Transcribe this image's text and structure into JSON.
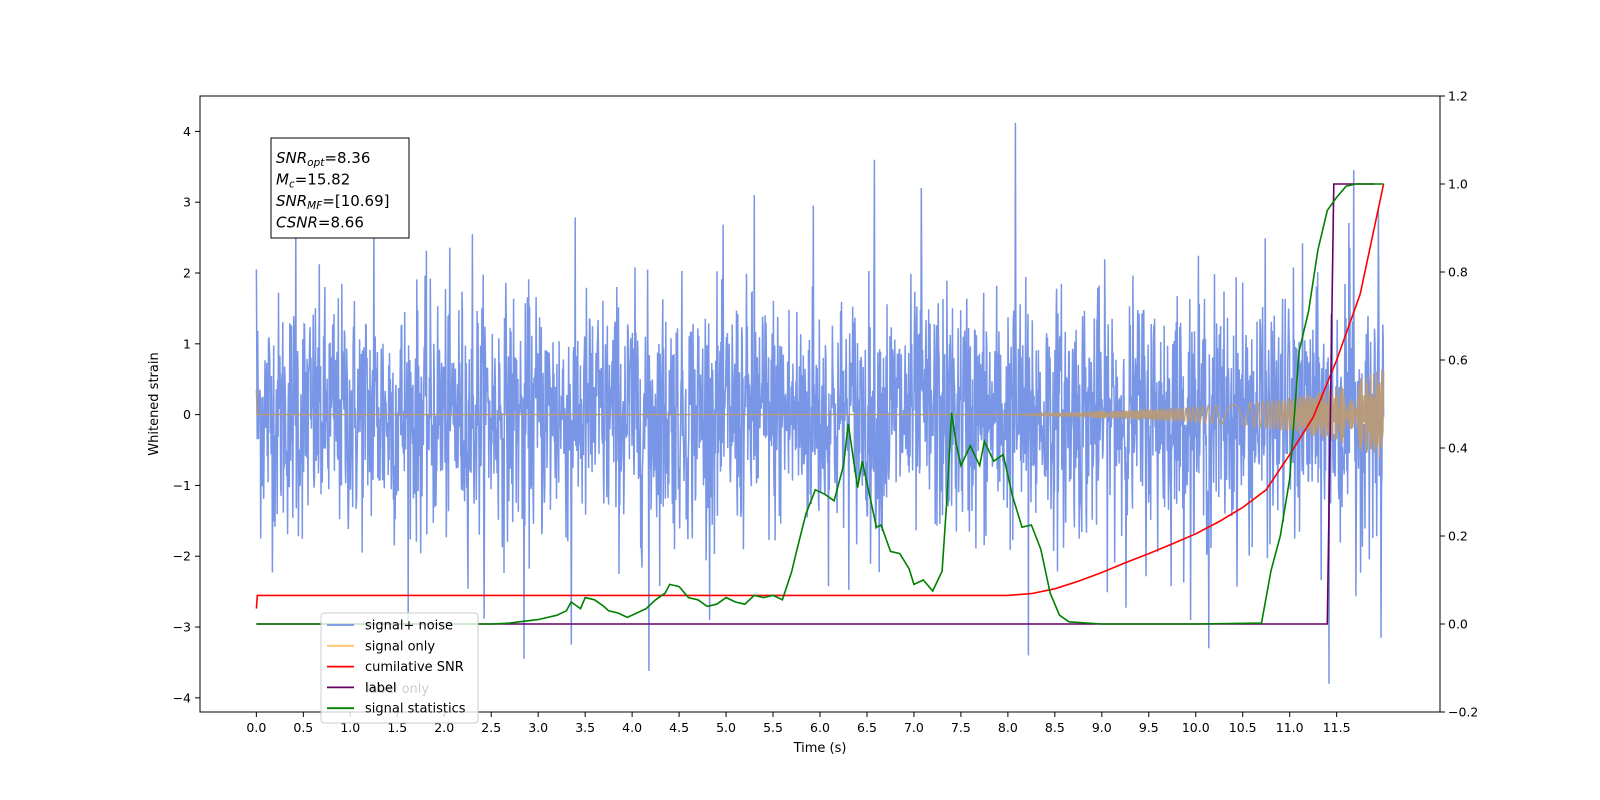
{
  "chart_data": {
    "type": "line",
    "xlabel": "Time (s)",
    "ylabel": "Whitened strain",
    "xlim": [
      -0.6,
      12.6
    ],
    "ylim": [
      -4.2,
      4.5
    ],
    "y2lim": [
      -0.2,
      1.2
    ],
    "x_ticks": [
      0.0,
      0.5,
      1.0,
      1.5,
      2.0,
      2.5,
      3.0,
      3.5,
      4.0,
      4.5,
      5.0,
      5.5,
      6.0,
      6.5,
      7.0,
      7.5,
      8.0,
      8.5,
      9.0,
      9.5,
      10.0,
      10.5,
      11.0,
      11.5
    ],
    "y_ticks": [
      -4,
      -3,
      -2,
      -1,
      0,
      1,
      2,
      3,
      4
    ],
    "y2_ticks": [
      -0.2,
      0.0,
      0.2,
      0.4,
      0.6,
      0.8,
      1.0,
      1.2
    ],
    "grid": false,
    "legend_position": "lower-left",
    "annotation_box": {
      "lines": [
        {
          "name": "SNR",
          "sub": "opt",
          "value": "=8.36"
        },
        {
          "name": "M",
          "sub": "c",
          "value": "=15.82"
        },
        {
          "name": "SNR",
          "sub": "MF",
          "value": "=[10.69]"
        },
        {
          "name": "CSNR",
          "sub": "",
          "value": "=8.66"
        }
      ]
    },
    "noise_envelope": {
      "description_axis": "left",
      "x_range": [
        0.0,
        12.0
      ],
      "sigma": 0.85,
      "peak_samples": [
        {
          "x": 0.0,
          "y": 2.05
        },
        {
          "x": 0.42,
          "y": 2.9
        },
        {
          "x": 1.25,
          "y": 2.85
        },
        {
          "x": 2.3,
          "y": 2.55
        },
        {
          "x": 2.85,
          "y": -3.45
        },
        {
          "x": 3.35,
          "y": -3.25
        },
        {
          "x": 4.18,
          "y": -3.62
        },
        {
          "x": 5.3,
          "y": 3.1
        },
        {
          "x": 5.93,
          "y": 2.95
        },
        {
          "x": 6.58,
          "y": 3.6
        },
        {
          "x": 7.08,
          "y": 3.2
        },
        {
          "x": 8.08,
          "y": 4.12
        },
        {
          "x": 8.22,
          "y": -3.4
        },
        {
          "x": 10.14,
          "y": -3.3
        },
        {
          "x": 11.42,
          "y": -3.8
        },
        {
          "x": 11.68,
          "y": 3.45
        },
        {
          "x": 11.97,
          "y": -3.15
        }
      ]
    },
    "series": [
      {
        "name": "signal+ noise",
        "color": "#7593e6",
        "axis": "left",
        "kind": "noise"
      },
      {
        "name": "signal only",
        "color": "#ffc266",
        "axis": "left",
        "kind": "chirp",
        "amplitude_points": [
          {
            "x": 0.0,
            "y": 0.0
          },
          {
            "x": 8.0,
            "y": 0.0
          },
          {
            "x": 9.0,
            "y": 0.05
          },
          {
            "x": 10.0,
            "y": 0.11
          },
          {
            "x": 10.5,
            "y": 0.16
          },
          {
            "x": 11.0,
            "y": 0.24
          },
          {
            "x": 11.5,
            "y": 0.38
          },
          {
            "x": 12.0,
            "y": 0.65
          }
        ],
        "spike": {
          "x": 0.0,
          "y": 0.35
        }
      },
      {
        "name": "cumilative SNR",
        "color": "#ff0000",
        "axis": "right",
        "x": [
          0.0,
          0.01,
          8.0,
          8.25,
          8.5,
          8.75,
          9.0,
          9.25,
          9.5,
          9.75,
          10.0,
          10.25,
          10.5,
          10.75,
          11.0,
          11.25,
          11.5,
          11.75,
          12.0
        ],
        "y": [
          0.035,
          0.065,
          0.065,
          0.069,
          0.08,
          0.097,
          0.117,
          0.139,
          0.16,
          0.182,
          0.205,
          0.233,
          0.265,
          0.305,
          0.385,
          0.47,
          0.6,
          0.75,
          1.0
        ]
      },
      {
        "name": "label",
        "color": "#660066",
        "axis": "right",
        "x": [
          0.0,
          11.4,
          11.47,
          11.5,
          11.9
        ],
        "y": [
          0.0,
          0.0,
          1.0,
          1.0,
          1.0
        ]
      },
      {
        "name": "signal statistics",
        "color": "#008000",
        "axis": "right",
        "x": [
          0.0,
          1.0,
          2.0,
          2.5,
          2.7,
          2.8,
          3.0,
          3.2,
          3.3,
          3.35,
          3.45,
          3.5,
          3.6,
          3.7,
          3.75,
          3.85,
          3.95,
          4.05,
          4.15,
          4.25,
          4.35,
          4.4,
          4.5,
          4.6,
          4.7,
          4.8,
          4.9,
          5.0,
          5.1,
          5.2,
          5.3,
          5.4,
          5.5,
          5.6,
          5.7,
          5.75,
          5.85,
          5.95,
          6.05,
          6.15,
          6.25,
          6.3,
          6.4,
          6.45,
          6.55,
          6.6,
          6.65,
          6.75,
          6.85,
          6.95,
          7.0,
          7.1,
          7.2,
          7.3,
          7.35,
          7.4,
          7.45,
          7.5,
          7.6,
          7.7,
          7.75,
          7.85,
          7.95,
          8.05,
          8.15,
          8.25,
          8.35,
          8.45,
          8.55,
          8.65,
          9.0,
          10.0,
          10.7,
          10.8,
          10.9,
          11.0,
          11.1,
          11.2,
          11.3,
          11.4,
          11.5,
          11.6,
          11.7,
          11.8,
          11.9,
          12.0
        ],
        "y": [
          0.0,
          0.0,
          0.0,
          0.0,
          0.002,
          0.005,
          0.01,
          0.02,
          0.03,
          0.05,
          0.035,
          0.06,
          0.055,
          0.04,
          0.03,
          0.025,
          0.015,
          0.025,
          0.035,
          0.055,
          0.07,
          0.09,
          0.085,
          0.06,
          0.055,
          0.04,
          0.045,
          0.06,
          0.05,
          0.045,
          0.065,
          0.06,
          0.065,
          0.055,
          0.12,
          0.165,
          0.25,
          0.305,
          0.295,
          0.28,
          0.36,
          0.455,
          0.31,
          0.37,
          0.27,
          0.22,
          0.225,
          0.165,
          0.16,
          0.125,
          0.09,
          0.1,
          0.075,
          0.12,
          0.28,
          0.48,
          0.41,
          0.36,
          0.405,
          0.36,
          0.415,
          0.37,
          0.385,
          0.29,
          0.22,
          0.225,
          0.17,
          0.07,
          0.02,
          0.005,
          0.0,
          0.0,
          0.002,
          0.12,
          0.2,
          0.33,
          0.62,
          0.71,
          0.85,
          0.94,
          0.97,
          0.995,
          1.0,
          1.0,
          1.0,
          1.0
        ]
      }
    ],
    "legend": [
      {
        "label": "signal+ noise",
        "color": "#7593e6"
      },
      {
        "label": "signal only",
        "color": "#ffc266"
      },
      {
        "label": "cumilative SNR",
        "color": "#ff0000"
      },
      {
        "label": "label",
        "color": "#660066"
      },
      {
        "label": "label only",
        "color": "#cccccc",
        "obscured": true
      },
      {
        "label": "signal statistics",
        "color": "#008000"
      }
    ]
  }
}
